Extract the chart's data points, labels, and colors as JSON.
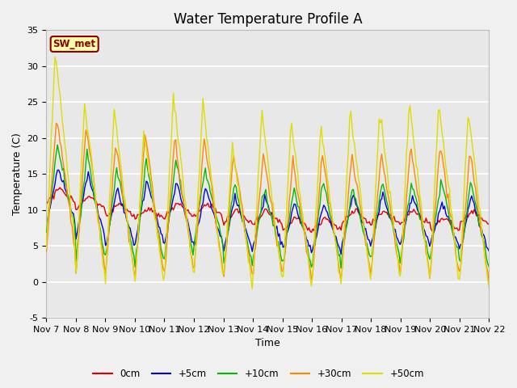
{
  "title": "Water Temperature Profile A",
  "xlabel": "Time",
  "ylabel": "Temperature (C)",
  "ylim": [
    -5,
    35
  ],
  "legend_labels": [
    "0cm",
    "+5cm",
    "+10cm",
    "+30cm",
    "+50cm"
  ],
  "legend_colors": [
    "#dd0000",
    "#0000dd",
    "#00bb00",
    "#ff8800",
    "#dddd00"
  ],
  "sw_met_label": "SW_met",
  "xtick_labels": [
    "Nov 7",
    "Nov 8",
    "Nov 9",
    "Nov 10",
    "Nov 11",
    "Nov 12",
    "Nov 13",
    "Nov 14",
    "Nov 15",
    "Nov 16",
    "Nov 17",
    "Nov 18",
    "Nov 19",
    "Nov 20",
    "Nov 21",
    "Nov 22"
  ],
  "ytick_labels": [
    "-5",
    "0",
    "5",
    "10",
    "15",
    "20",
    "25",
    "30",
    "35"
  ],
  "ytick_vals": [
    -5,
    0,
    5,
    10,
    15,
    20,
    25,
    30,
    35
  ],
  "plot_bg_color": "#e8e8e8",
  "fig_bg_color": "#f0f0f0",
  "title_fontsize": 12,
  "axis_fontsize": 9,
  "tick_fontsize": 8
}
